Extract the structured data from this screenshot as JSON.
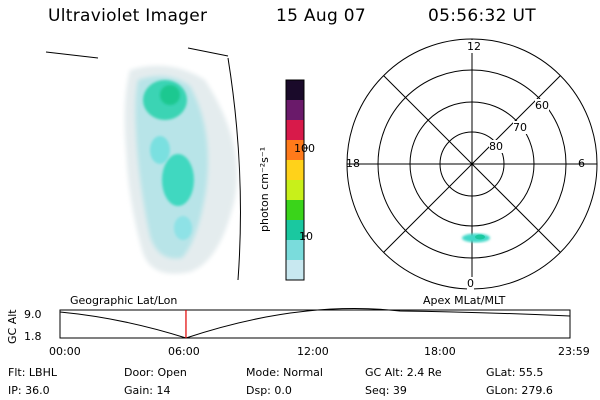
{
  "header": {
    "instrument": "Ultraviolet Imager",
    "date": "15 Aug 07",
    "time": "05:56:32 UT"
  },
  "colorbar": {
    "unit_label": "photon cm⁻²s⁻¹",
    "ticks": [
      "100",
      "10"
    ],
    "colors": [
      "#1a0a2a",
      "#6a1a6a",
      "#d81a4a",
      "#ff7a1a",
      "#ffd21a",
      "#c8f01a",
      "#3ad41a",
      "#1ac8a0",
      "#7adcdc",
      "#c8e8f0"
    ]
  },
  "polar_plot": {
    "mlt_labels": {
      "top": "12",
      "left": "18",
      "right": "6",
      "bottom": "0"
    },
    "lat_labels": [
      "60",
      "70",
      "80"
    ]
  },
  "timeline": {
    "left_title": "Geographic Lat/Lon",
    "right_title": "Apex MLat/MLT",
    "axis_title": "GC Alt",
    "y_ticks": [
      "9.0",
      "1.8"
    ],
    "x_ticks": [
      "00:00",
      "06:00",
      "12:00",
      "18:00",
      "23:59"
    ],
    "current_time_fraction": 0.247
  },
  "info": {
    "filter": "Flt: LBHL",
    "door": "Door: Open",
    "mode": "Mode: Normal",
    "gc_alt": "GC Alt: 2.4 Re",
    "glat": "GLat:  55.5",
    "ip": "IP: 36.0",
    "gain": "Gain: 14",
    "dsp": "Dsp:   0.0",
    "seq": "Seq: 39",
    "glon": "GLon: 279.6"
  }
}
